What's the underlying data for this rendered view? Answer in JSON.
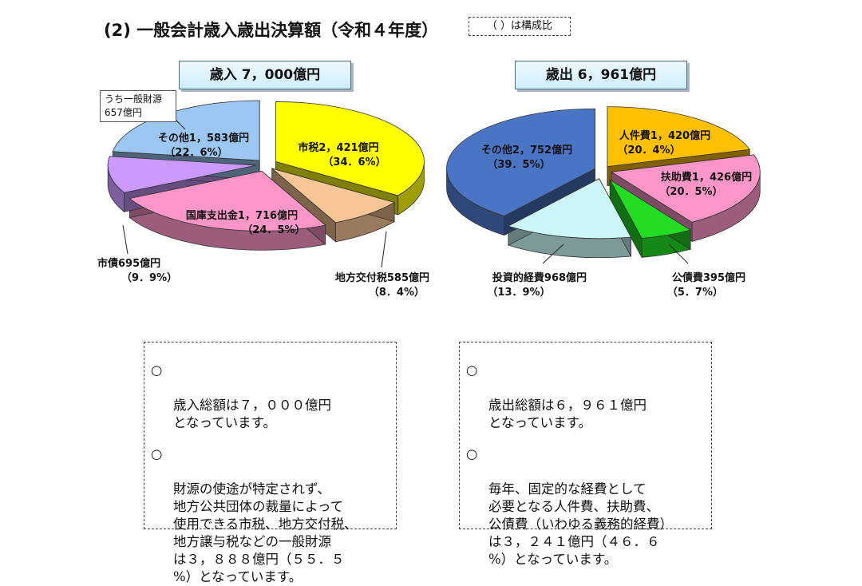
{
  "header": {
    "title": "(2) 一般会計歳入歳出決算額（令和４年度）",
    "ratio_note": "（ ）は構成比"
  },
  "callout": {
    "line1": "うち一般財源",
    "line2": "657億円"
  },
  "chart_data": [
    {
      "type": "pie",
      "title": "歳入 7，000億円",
      "slices": [
        {
          "key": "shizei",
          "name": "市税2，421億円",
          "value": 2421,
          "pct": "（34．6%）",
          "color": "#ffff00"
        },
        {
          "key": "chihokofu",
          "name": "地方交付税585億円",
          "value": 585,
          "pct": "（8．4%）",
          "color": "#f8c594"
        },
        {
          "key": "kokko",
          "name": "国庫支出金1，716億円",
          "value": 1716,
          "pct": "（24．5%）",
          "color": "#fc96c8"
        },
        {
          "key": "shisai",
          "name": "市債695億円",
          "value": 695,
          "pct": "（9．9%）",
          "color": "#cc99ff"
        },
        {
          "key": "sonota",
          "name": "その他1，583億円",
          "value": 1583,
          "pct": "（22．6%）",
          "color": "#9cc7f3"
        }
      ]
    },
    {
      "type": "pie",
      "title": "歳出 6，961億円",
      "slices": [
        {
          "key": "jinken",
          "name": "人件費1，420億円",
          "value": 1420,
          "pct": "（20．4%）",
          "color": "#ffc000"
        },
        {
          "key": "fujo",
          "name": "扶助費1，426億円",
          "value": 1426,
          "pct": "（20．5%）",
          "color": "#fc96c8"
        },
        {
          "key": "kosai",
          "name": "公債費395億円",
          "value": 395,
          "pct": "（5．7%）",
          "color": "#22dd22"
        },
        {
          "key": "toshi",
          "name": "投資的経費968億円",
          "value": 968,
          "pct": "（13．9%）",
          "color": "#ccf6f6"
        },
        {
          "key": "sonota",
          "name": "その他2，752億円",
          "value": 2752,
          "pct": "（39．5%）",
          "color": "#4a74c4"
        }
      ]
    }
  ],
  "notes": {
    "bullet": "○",
    "revenue": [
      "歳入総額は７，０００億円\nとなっています。",
      "財源の使途が特定されず、\n地方公共団体の裁量によって\n使用できる市税、地方交付税、\n地方譲与税などの一般財源\nは３，８８８億円（５５．５\n%）となっています。"
    ],
    "expenditure": [
      "歳出総額は６，９６１億円\nとなっています。",
      "毎年、固定的な経費として\n必要となる人件費、扶助費、\n公債費（いわゆる義務的経費）\nは３，２４１億円（４６．６\n%）となっています。"
    ]
  }
}
